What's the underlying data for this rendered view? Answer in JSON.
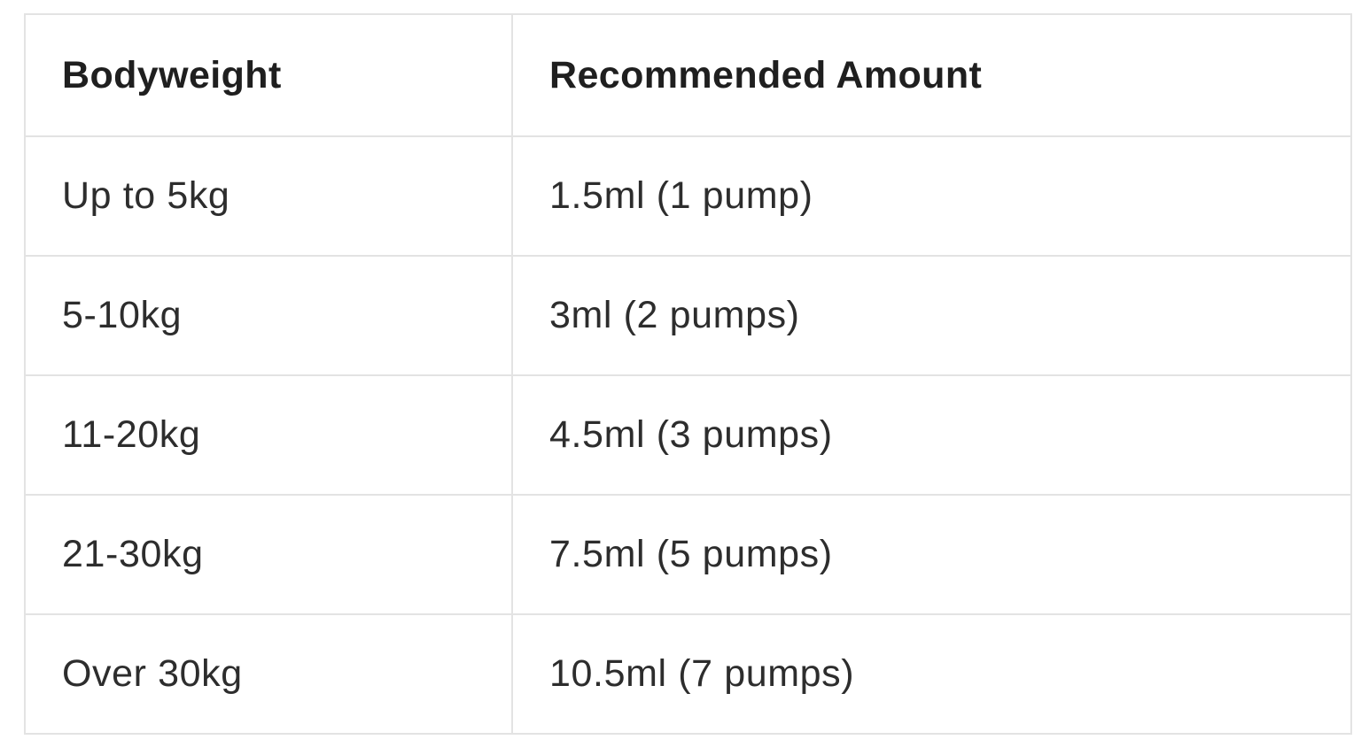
{
  "table": {
    "columns": [
      {
        "label": "Bodyweight"
      },
      {
        "label": "Recommended Amount"
      }
    ],
    "rows": [
      {
        "bodyweight": "Up to 5kg",
        "amount": "1.5ml (1 pump)"
      },
      {
        "bodyweight": "5-10kg",
        "amount": "3ml (2 pumps)"
      },
      {
        "bodyweight": "11-20kg",
        "amount": "4.5ml (3 pumps)"
      },
      {
        "bodyweight": "21-30kg",
        "amount": "7.5ml (5 pumps)"
      },
      {
        "bodyweight": "Over 30kg",
        "amount": "10.5ml (7 pumps)"
      }
    ],
    "colors": {
      "border": "#e3e3e3",
      "header_text": "#1f1f1f",
      "body_text": "#2d2d2d",
      "background": "#ffffff"
    }
  }
}
